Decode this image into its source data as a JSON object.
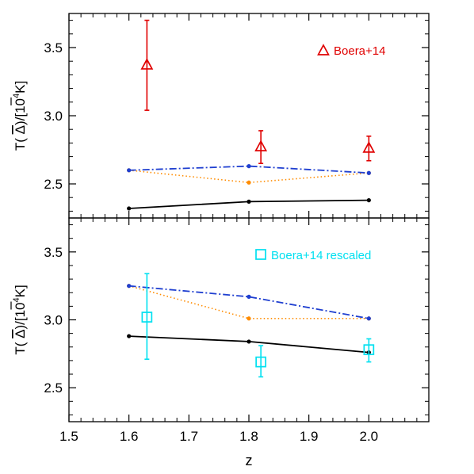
{
  "chart_data": [
    {
      "type": "line",
      "panel": "top",
      "ylabel": {
        "prefix": "T(",
        "delta": "Δ",
        "suffix": ")/[10",
        "sup": "4",
        "unit": "K]"
      },
      "xlim": [
        1.5,
        2.1
      ],
      "ylim": [
        2.25,
        3.75
      ],
      "y_ticks": [
        "2.5",
        "3.0",
        "3.5"
      ],
      "y_tick_values": [
        2.5,
        3.0,
        3.5
      ],
      "series": [
        {
          "color": "#000000",
          "style": "solid",
          "x": [
            1.6,
            1.8,
            2.0
          ],
          "y": [
            2.32,
            2.37,
            2.38
          ]
        },
        {
          "color": "#ff8c00",
          "style": "dotted",
          "x": [
            1.6,
            1.8,
            2.0
          ],
          "y": [
            2.6,
            2.51,
            2.58
          ]
        },
        {
          "color": "#1f3fd0",
          "style": "dashdot",
          "x": [
            1.6,
            1.8,
            2.0
          ],
          "y": [
            2.6,
            2.63,
            2.58
          ]
        }
      ],
      "observations": {
        "name": "Boera+14",
        "marker": "triangle",
        "color": "#e00000",
        "legend_position": "top-right",
        "points": [
          {
            "x": 1.63,
            "y": 3.37,
            "ylo": 3.04,
            "yhi": 3.7
          },
          {
            "x": 1.82,
            "y": 2.77,
            "ylo": 2.65,
            "yhi": 2.89
          },
          {
            "x": 2.0,
            "y": 2.76,
            "ylo": 2.67,
            "yhi": 2.85
          }
        ]
      }
    },
    {
      "type": "line",
      "panel": "bottom",
      "xlabel": "z",
      "ylabel": {
        "prefix": "T(",
        "delta": "Δ",
        "suffix": ")/[10",
        "sup": "4",
        "unit": "K]"
      },
      "xlim": [
        1.5,
        2.1
      ],
      "ylim": [
        2.25,
        3.75
      ],
      "x_ticks": [
        "1.5",
        "1.6",
        "1.7",
        "1.8",
        "1.9",
        "2.0"
      ],
      "x_tick_values": [
        1.5,
        1.6,
        1.7,
        1.8,
        1.9,
        2.0
      ],
      "y_ticks": [
        "2.5",
        "3.0",
        "3.5"
      ],
      "y_tick_values": [
        2.5,
        3.0,
        3.5
      ],
      "series": [
        {
          "color": "#000000",
          "style": "solid",
          "x": [
            1.6,
            1.8,
            2.0
          ],
          "y": [
            2.88,
            2.84,
            2.76
          ]
        },
        {
          "color": "#ff8c00",
          "style": "dotted",
          "x": [
            1.6,
            1.8,
            2.0
          ],
          "y": [
            3.25,
            3.01,
            3.01
          ]
        },
        {
          "color": "#1f3fd0",
          "style": "dashdot",
          "x": [
            1.6,
            1.8,
            2.0
          ],
          "y": [
            3.25,
            3.17,
            3.01
          ]
        }
      ],
      "observations": {
        "name": "Boera+14 rescaled",
        "marker": "square",
        "color": "#00e0f0",
        "legend_position": "top-right",
        "points": [
          {
            "x": 1.63,
            "y": 3.02,
            "ylo": 2.71,
            "yhi": 3.34
          },
          {
            "x": 1.82,
            "y": 2.69,
            "ylo": 2.58,
            "yhi": 2.81
          },
          {
            "x": 2.0,
            "y": 2.78,
            "ylo": 2.69,
            "yhi": 2.86
          }
        ]
      }
    }
  ]
}
